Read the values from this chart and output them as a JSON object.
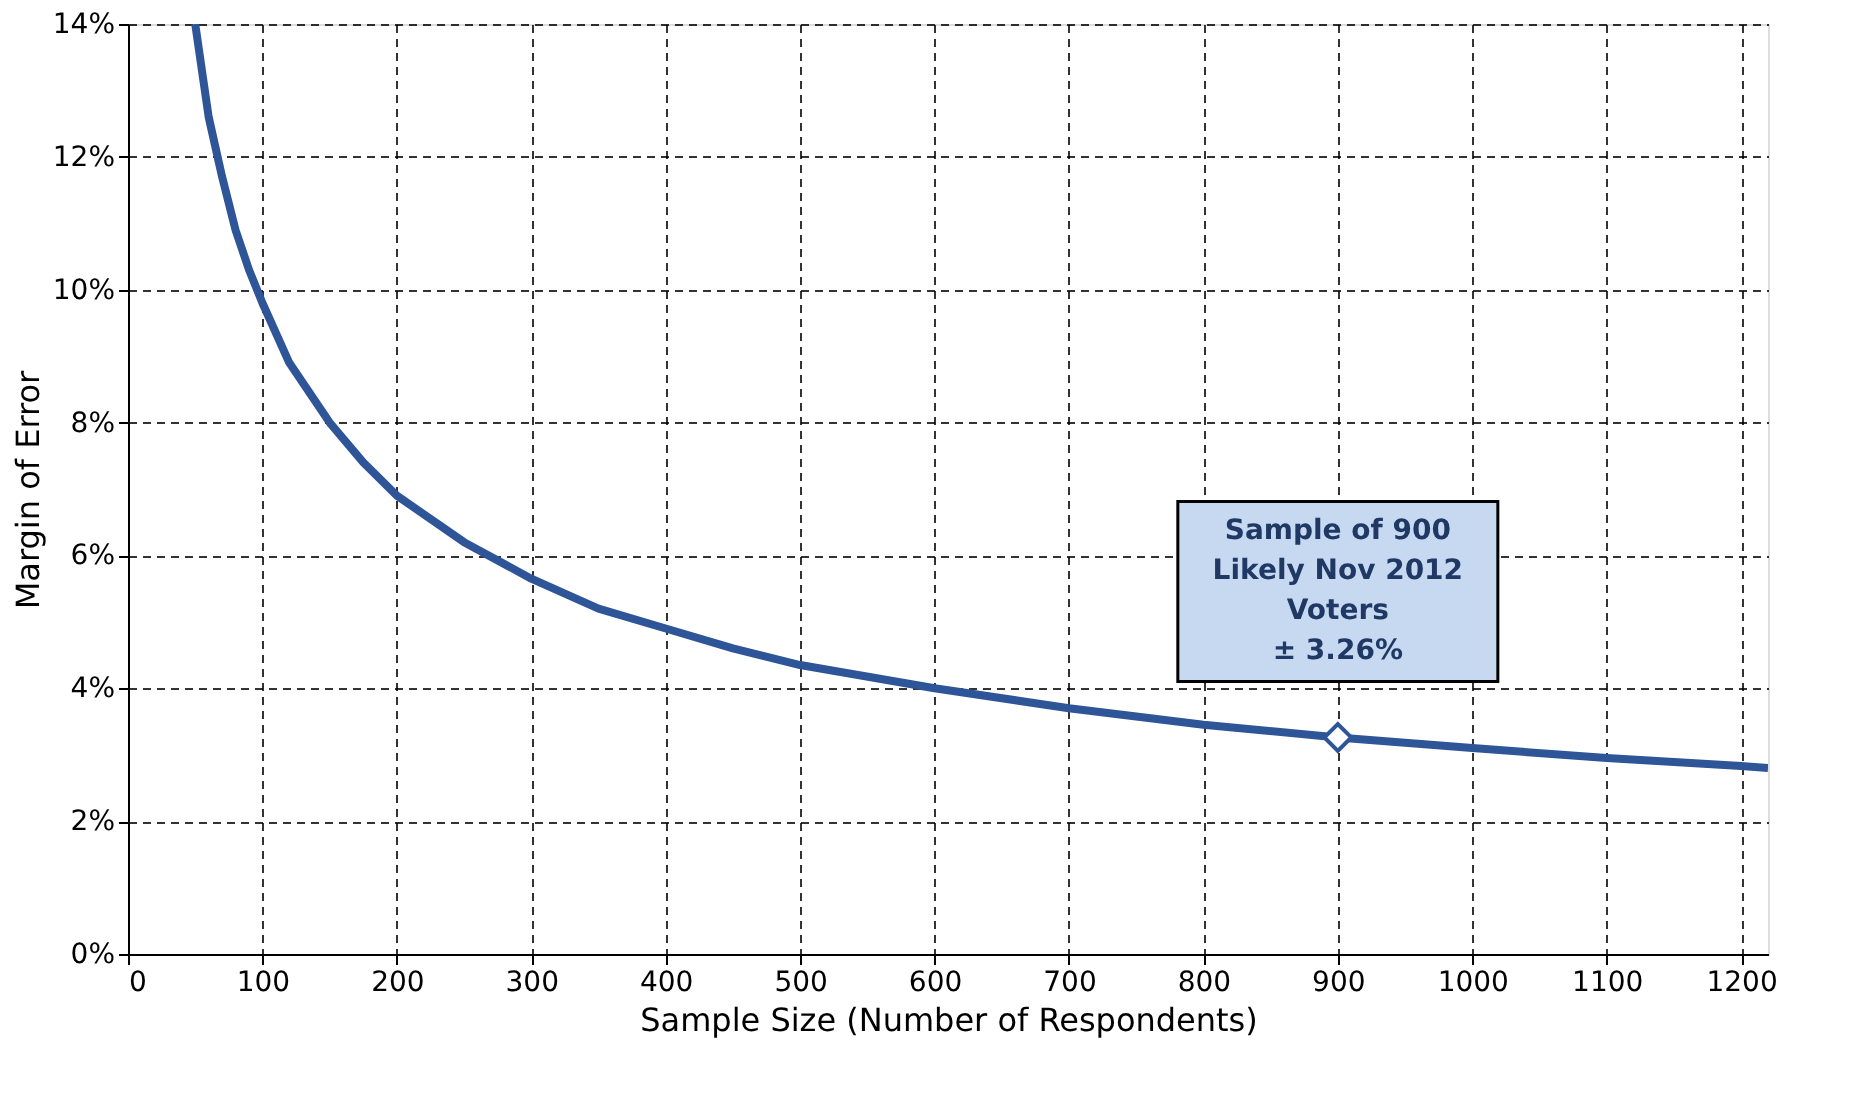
{
  "chart_data": {
    "type": "line",
    "xlabel": "Sample Size (Number of Respondents)",
    "ylabel": "Margin of Error",
    "x": [
      50,
      60,
      70,
      80,
      90,
      100,
      120,
      150,
      175,
      200,
      250,
      300,
      350,
      400,
      450,
      500,
      600,
      700,
      800,
      900,
      1000,
      1100,
      1200,
      1220
    ],
    "series": [
      {
        "color": "#2e5597",
        "values": [
          14.0,
          12.6,
          11.7,
          10.9,
          10.3,
          9.8,
          8.9,
          8.0,
          7.4,
          6.9,
          6.2,
          5.65,
          5.2,
          4.9,
          4.6,
          4.35,
          4.0,
          3.7,
          3.45,
          3.26,
          3.1,
          2.95,
          2.83,
          2.8
        ]
      }
    ],
    "xlim": [
      0,
      1220
    ],
    "xticks": [
      0,
      100,
      200,
      300,
      400,
      500,
      600,
      700,
      800,
      900,
      1000,
      1100,
      1200
    ],
    "ylim": [
      0,
      14
    ],
    "yticks": [
      {
        "value": 0,
        "label": "0%"
      },
      {
        "value": 2,
        "label": "2%"
      },
      {
        "value": 4,
        "label": "4%"
      },
      {
        "value": 6,
        "label": "6%"
      },
      {
        "value": 8,
        "label": "8%"
      },
      {
        "value": 10,
        "label": "10%"
      },
      {
        "value": 12,
        "label": "12%"
      },
      {
        "value": 14,
        "label": "14%"
      }
    ],
    "grid": true,
    "line_style": "solid",
    "annotations": [
      {
        "text": "Sample of 900\nLikely Nov 2012\nVoters\n± 3.26%",
        "x": 900,
        "y": 3.26
      }
    ]
  }
}
